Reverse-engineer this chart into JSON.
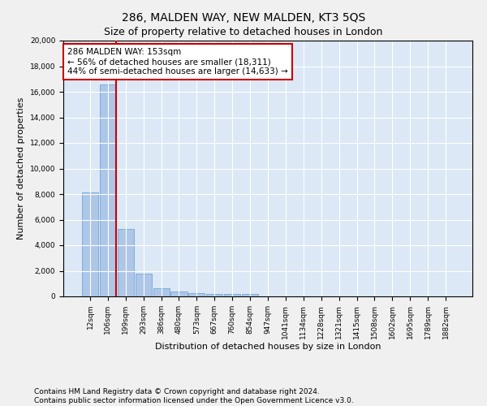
{
  "title": "286, MALDEN WAY, NEW MALDEN, KT3 5QS",
  "subtitle": "Size of property relative to detached houses in London",
  "xlabel": "Distribution of detached houses by size in London",
  "ylabel": "Number of detached properties",
  "bar_color": "#aec6e8",
  "bar_edge_color": "#5a9fd4",
  "categories": [
    "12sqm",
    "106sqm",
    "199sqm",
    "293sqm",
    "386sqm",
    "480sqm",
    "573sqm",
    "667sqm",
    "760sqm",
    "854sqm",
    "947sqm",
    "1041sqm",
    "1134sqm",
    "1228sqm",
    "1321sqm",
    "1415sqm",
    "1508sqm",
    "1602sqm",
    "1695sqm",
    "1789sqm",
    "1882sqm"
  ],
  "values": [
    8100,
    16600,
    5300,
    1750,
    650,
    350,
    270,
    200,
    170,
    200,
    0,
    0,
    0,
    0,
    0,
    0,
    0,
    0,
    0,
    0,
    0
  ],
  "ylim": [
    0,
    20000
  ],
  "yticks": [
    0,
    2000,
    4000,
    6000,
    8000,
    10000,
    12000,
    14000,
    16000,
    18000,
    20000
  ],
  "vline_x_index": 1,
  "vline_color": "#cc0000",
  "annotation_title": "286 MALDEN WAY: 153sqm",
  "annotation_line1": "← 56% of detached houses are smaller (18,311)",
  "annotation_line2": "44% of semi-detached houses are larger (14,633) →",
  "annotation_box_color": "#ffffff",
  "annotation_box_edge_color": "#cc0000",
  "footer_line1": "Contains HM Land Registry data © Crown copyright and database right 2024.",
  "footer_line2": "Contains public sector information licensed under the Open Government Licence v3.0.",
  "background_color": "#f0f0f0",
  "plot_bg_color": "#dce8f5",
  "grid_color": "#ffffff",
  "title_fontsize": 10,
  "subtitle_fontsize": 9,
  "label_fontsize": 8,
  "tick_fontsize": 6.5,
  "footer_fontsize": 6.5,
  "annotation_fontsize": 7.5
}
